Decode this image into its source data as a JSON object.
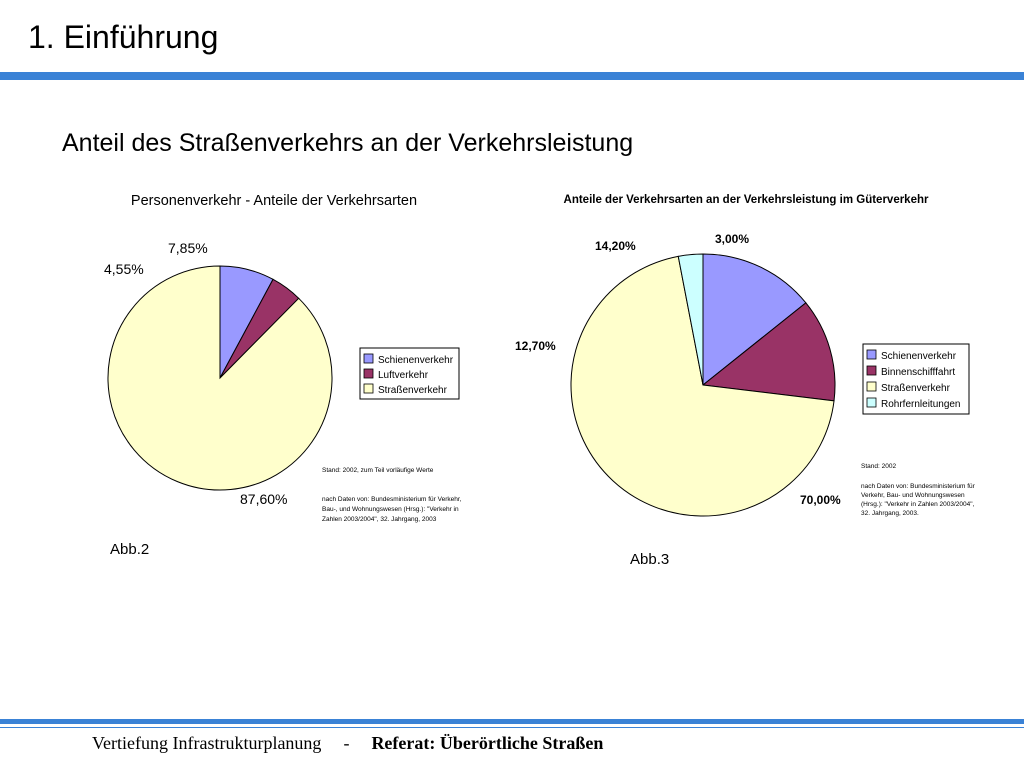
{
  "slide": {
    "title": "1. Einführung",
    "subtitle": "Anteil des Straßenverkehrs an der Verkehrsleistung"
  },
  "figures": [
    {
      "label": "Abb.2"
    },
    {
      "label": "Abb.3"
    }
  ],
  "footer": {
    "left": "Vertiefung Infrastrukturplanung",
    "separator": "-",
    "right": "Referat: Überörtliche Straßen"
  },
  "colors": {
    "accent": "#3a82d6",
    "schiene": "#9999ff",
    "luft_binnen": "#993366",
    "strasse": "#ffffcc",
    "rohr": "#ccffff"
  },
  "chart_data": [
    {
      "type": "pie",
      "title": "Personenverkehr - Anteile der Verkehrsarten",
      "categories": [
        "Schienenverkehr",
        "Luftverkehr",
        "Straßenverkehr"
      ],
      "values": [
        7.85,
        4.55,
        87.6
      ],
      "value_labels": [
        "7,85%",
        "4,55%",
        "87,60%"
      ],
      "colors": [
        "#9999ff",
        "#993366",
        "#ffffcc"
      ],
      "legend": "right",
      "notes": [
        "Stand: 2002, zum Teil vorläufige Werte",
        "nach Daten von: Bundesministerium für Verkehr,",
        "Bau-, und Wohnungswesen (Hrsg.): \"Verkehr in",
        "Zahlen 2003/2004\", 32. Jahrgang, 2003"
      ]
    },
    {
      "type": "pie",
      "title": "Anteile der Verkehrsarten an der Verkehrsleistung im Güterverkehr",
      "categories": [
        "Schienenverkehr",
        "Binnenschifffahrt",
        "Straßenverkehr",
        "Rohrfernleitungen"
      ],
      "values": [
        14.2,
        12.7,
        70.0,
        3.0
      ],
      "value_labels": [
        "14,20%",
        "12,70%",
        "70,00%",
        "3,00%"
      ],
      "colors": [
        "#9999ff",
        "#993366",
        "#ffffcc",
        "#ccffff"
      ],
      "legend": "right",
      "notes": [
        "Stand: 2002",
        "nach Daten von: Bundesministerium für",
        "Verkehr, Bau- und Wohnungswesen",
        "(Hrsg.): \"Verkehr in Zahlen 2003/2004\",",
        "32. Jahrgang, 2003."
      ]
    }
  ]
}
